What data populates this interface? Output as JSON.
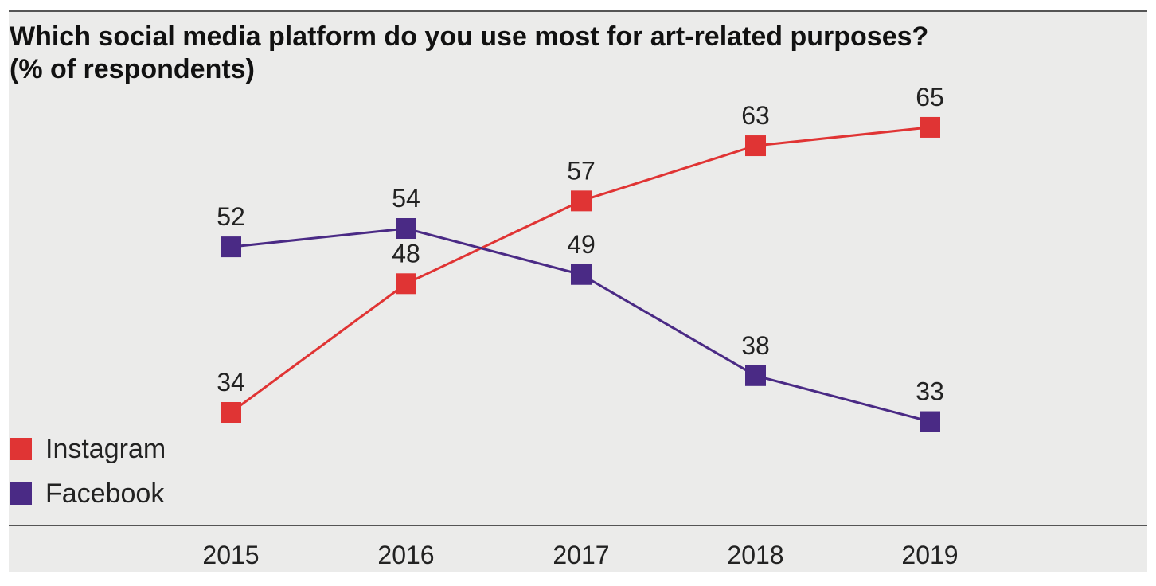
{
  "title_line1": "Which social media platform do you use most for art-related purposes?",
  "title_line2": "(% of respondents)",
  "chart_data": {
    "type": "line",
    "title": "Which social media platform do you use most for art-related purposes? (% of respondents)",
    "x": [
      "2015",
      "2016",
      "2017",
      "2018",
      "2019"
    ],
    "series": [
      {
        "name": "Instagram",
        "color": "#e03434",
        "values": [
          34,
          48,
          57,
          63,
          65
        ]
      },
      {
        "name": "Facebook",
        "color": "#4a2a85",
        "values": [
          52,
          54,
          49,
          38,
          33
        ]
      }
    ],
    "legend_position": "bottom-left",
    "grid": false,
    "xlabel": "",
    "ylabel": ""
  }
}
